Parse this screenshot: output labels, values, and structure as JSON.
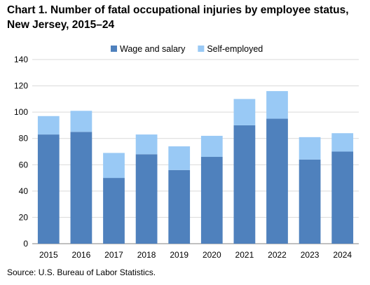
{
  "chart_data": {
    "type": "bar",
    "stacked": true,
    "title": "Chart 1. Number of fatal occupational injuries by employee status, New Jersey, 2015–24",
    "categories": [
      "2015",
      "2016",
      "2017",
      "2018",
      "2019",
      "2020",
      "2021",
      "2022",
      "2023",
      "2024"
    ],
    "series": [
      {
        "name": "Wage and salary",
        "values": [
          83,
          85,
          50,
          68,
          56,
          66,
          90,
          95,
          64,
          70
        ],
        "color": "#4f81bd"
      },
      {
        "name": "Self-employed",
        "values": [
          14,
          16,
          19,
          15,
          18,
          16,
          20,
          21,
          17,
          14
        ],
        "color": "#99c9f5"
      }
    ],
    "ylim": [
      0,
      140
    ],
    "yticks": [
      0,
      20,
      40,
      60,
      80,
      100,
      120,
      140
    ],
    "grid": true,
    "legend": "top-center",
    "source": "Source: U.S. Bureau of Labor Statistics."
  }
}
